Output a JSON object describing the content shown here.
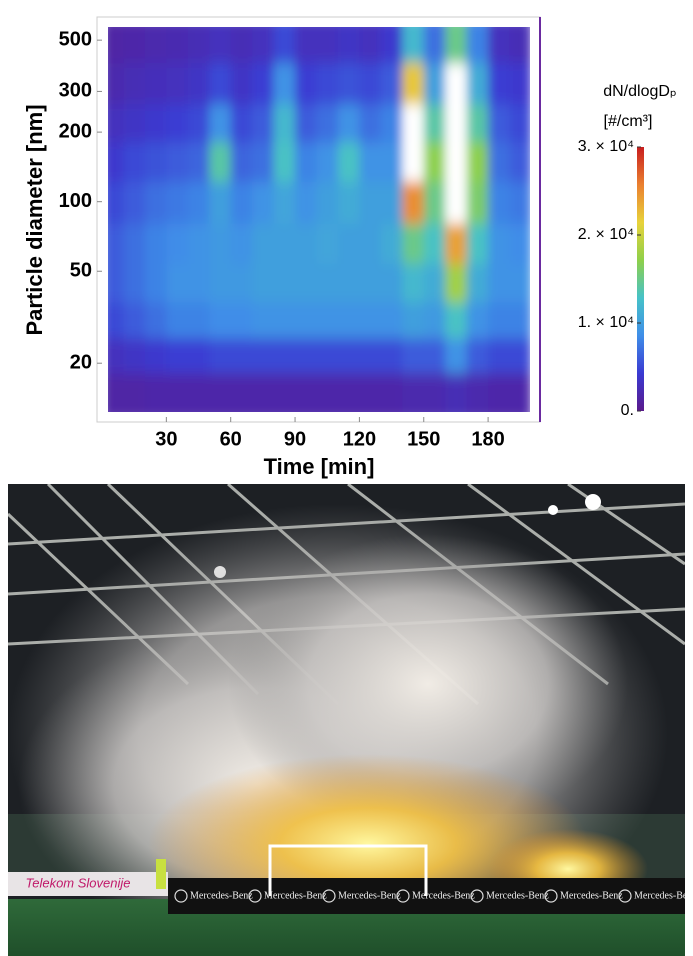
{
  "chart_data": {
    "type": "heatmap",
    "xlabel": "Time [min]",
    "ylabel": "Particle diameter [nm]",
    "colorbar_title": "dN/dlogDₚ",
    "colorbar_unit": "[#/cm³]",
    "xlim": [
      0,
      200
    ],
    "xticks": [
      30,
      60,
      90,
      120,
      150,
      180
    ],
    "ylim": [
      12.3,
      570
    ],
    "yscale": "log",
    "yticks": [
      20,
      50,
      100,
      200,
      300,
      500
    ],
    "zlim": [
      0,
      30000
    ],
    "zticks": [
      {
        "value": 0,
        "label": "0."
      },
      {
        "value": 10000,
        "label": "1. × 10⁴"
      },
      {
        "value": 20000,
        "label": "2. × 10⁴"
      },
      {
        "value": 30000,
        "label": "3. × 10⁴"
      }
    ],
    "colorscale": [
      "#5a1a8c",
      "#3a3ad2",
      "#3f8ee8",
      "#46c2c8",
      "#8fd04a",
      "#e8d23a",
      "#ea8030",
      "#c81e1e"
    ],
    "above_color": "#ffffff",
    "x": [
      5,
      15,
      25,
      35,
      45,
      55,
      65,
      75,
      85,
      95,
      105,
      115,
      125,
      135,
      145,
      155,
      165,
      175,
      185,
      195
    ],
    "y": [
      15,
      22,
      30,
      45,
      65,
      100,
      150,
      220,
      320,
      500
    ],
    "z": [
      [
        1500,
        1500,
        1800,
        1800,
        1800,
        1800,
        1800,
        1800,
        1800,
        1800,
        1800,
        1800,
        1800,
        1800,
        2000,
        2000,
        2500,
        2000,
        1800,
        1800
      ],
      [
        3000,
        3500,
        4000,
        4500,
        4500,
        5000,
        5000,
        5000,
        5000,
        5000,
        5000,
        5000,
        5000,
        5000,
        6000,
        6000,
        9000,
        6000,
        5000,
        5000
      ],
      [
        5000,
        6000,
        7000,
        8000,
        8000,
        8500,
        8500,
        9000,
        9000,
        9000,
        9000,
        9000,
        9000,
        9000,
        10000,
        9500,
        13000,
        9000,
        8000,
        8000
      ],
      [
        6000,
        7000,
        8000,
        9000,
        9000,
        9500,
        9500,
        10000,
        10000,
        10000,
        10000,
        10000,
        10000,
        10000,
        12000,
        11000,
        18000,
        11000,
        9000,
        9000
      ],
      [
        6000,
        7000,
        8000,
        8500,
        9000,
        9500,
        9000,
        10000,
        10000,
        10000,
        10500,
        10000,
        10000,
        11000,
        15000,
        13000,
        24000,
        13000,
        9000,
        8500
      ],
      [
        5000,
        6000,
        7000,
        7500,
        8000,
        10000,
        8000,
        9000,
        10500,
        9000,
        10000,
        11000,
        10000,
        10000,
        25000,
        15000,
        33000,
        16000,
        8000,
        7500
      ],
      [
        4000,
        5000,
        5500,
        6000,
        6500,
        14000,
        6500,
        7000,
        13000,
        8000,
        9000,
        13000,
        9000,
        9000,
        34000,
        17000,
        35000,
        17000,
        7000,
        6000
      ],
      [
        3000,
        3500,
        4000,
        4500,
        5000,
        9000,
        5000,
        6000,
        12000,
        6000,
        7000,
        9000,
        7000,
        8000,
        32000,
        14000,
        34000,
        14000,
        6000,
        5000
      ],
      [
        2000,
        2500,
        2800,
        3000,
        3500,
        5000,
        3500,
        4500,
        9000,
        4500,
        5000,
        5500,
        5000,
        6000,
        22000,
        10000,
        33000,
        11000,
        4500,
        4000
      ],
      [
        1500,
        1800,
        2000,
        2200,
        2500,
        3000,
        2500,
        3000,
        5000,
        3000,
        3000,
        3500,
        3000,
        4000,
        12000,
        7000,
        15000,
        8000,
        3000,
        2500
      ]
    ]
  },
  "photo": {
    "sponsor": "Telekom Slovenije",
    "banners": [
      "Mercedes-Benz",
      "Mercedes-Benz",
      "Mercedes-Benz",
      "Mercedes-Benz",
      "Mercedes-Benz",
      "Mercedes-Benz",
      "Mercedes-Benz"
    ]
  }
}
